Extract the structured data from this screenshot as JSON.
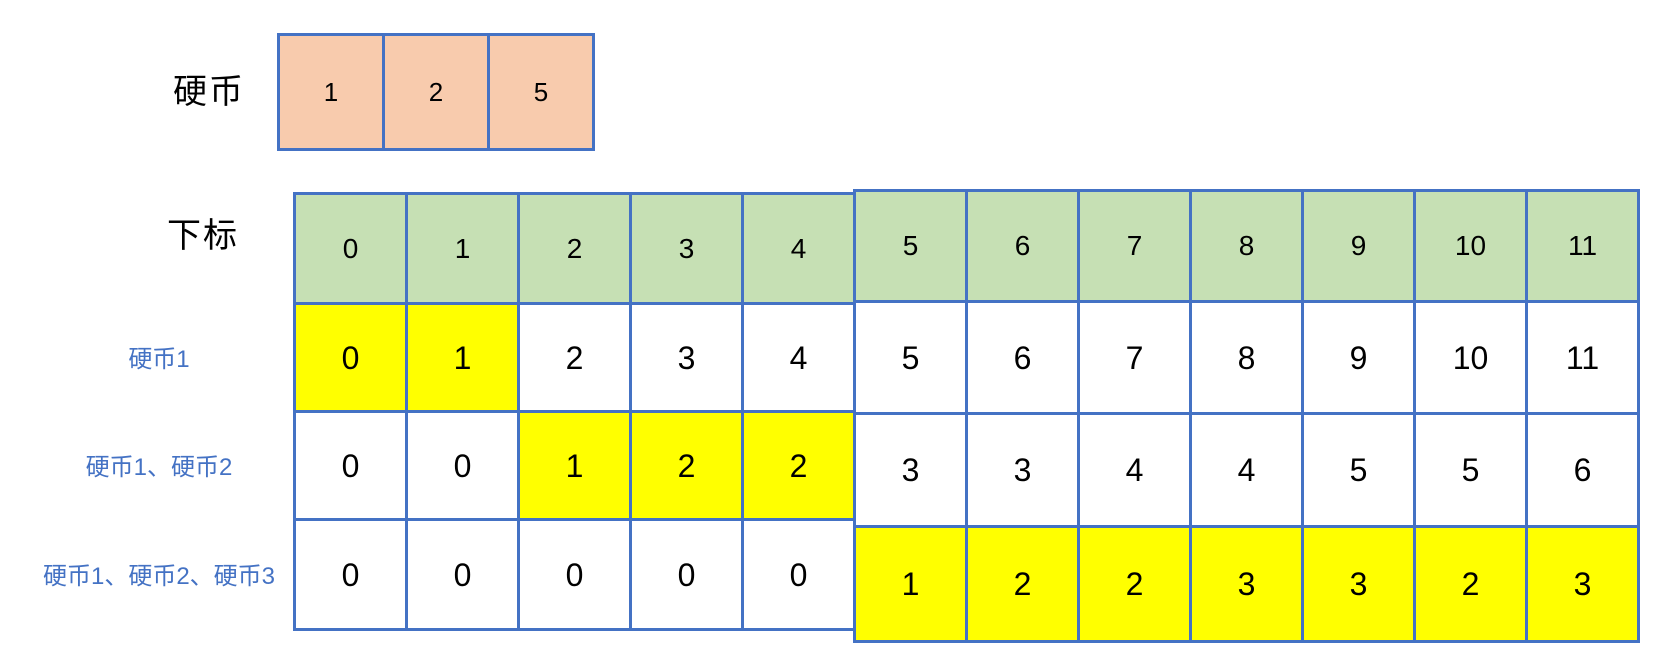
{
  "coins": {
    "label": "硬币",
    "values": [
      "1",
      "2",
      "5"
    ]
  },
  "index_row": {
    "label": "下标",
    "values": [
      "0",
      "1",
      "2",
      "3",
      "4",
      "5",
      "6",
      "7",
      "8",
      "9",
      "10",
      "11"
    ]
  },
  "dp_rows": [
    {
      "label": "硬币1",
      "values": [
        "0",
        "1",
        "2",
        "3",
        "4",
        "5",
        "6",
        "7",
        "8",
        "9",
        "10",
        "11"
      ],
      "highlighted_columns": [
        0,
        1
      ]
    },
    {
      "label": "硬币1、硬币2",
      "values": [
        "0",
        "0",
        "1",
        "2",
        "2",
        "3",
        "3",
        "4",
        "4",
        "5",
        "5",
        "6"
      ],
      "highlighted_columns": [
        2,
        3,
        4
      ]
    },
    {
      "label": "硬币1、硬币2、硬币3",
      "values": [
        "0",
        "0",
        "0",
        "0",
        "0",
        "1",
        "2",
        "2",
        "3",
        "3",
        "2",
        "3"
      ],
      "highlighted_columns": [
        5,
        6,
        7,
        8,
        9,
        10,
        11
      ]
    }
  ],
  "colors": {
    "cell_border": "#4472C4",
    "coin_fill": "#F8CBAD",
    "index_fill": "#C6E0B4",
    "highlight_fill": "#FFFF00",
    "cell_fill": "#FFFFFF",
    "row_label_text": "#4472C4",
    "text": "#000000",
    "background": "#FFFFFF"
  }
}
